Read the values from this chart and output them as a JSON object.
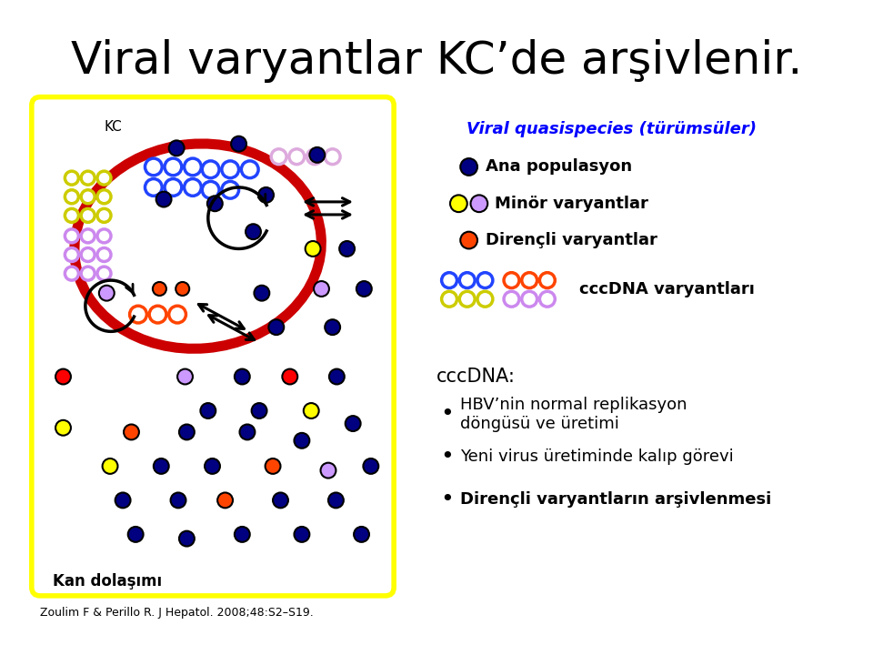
{
  "title": "Viral varyantlar KC’de arşivlenir.",
  "title_fontsize": 36,
  "title_color": "#000000",
  "background_color": "#ffffff",
  "legend_title": "Viral quasispecies (türümsüler)",
  "legend_title_color": "#0000ff",
  "legend_item0_label": "Ana populasyon",
  "legend_item1_label": "Minör varyantlar",
  "legend_item2_label": "Dirençli varyantlar",
  "legend_item3_label": "cccDNA varyantları",
  "cccdna_text": "cccDNA:",
  "bullet_points": [
    "HBV’nin normal replikasyon\ndöngüsü ve üretimi",
    "Yeni virus üretiminde kalıp görevi",
    "Dirençli varyantların arşivlenmesi"
  ],
  "bullet_bold": [
    false,
    false,
    true
  ],
  "footnote": "Zoulim F & Perillo R. J Hepatol. 2008;48:S2–S19.",
  "cell_box_color": "#ffff00",
  "nucleus_color": "#cc0000",
  "kc_label": "KC",
  "kan_label": "Kan dolaşımı",
  "blue_dark": "#000080",
  "blue_ring": "#2244ff",
  "yellow": "#ffff00",
  "yellow_ring": "#cccc00",
  "purple": "#cc99ff",
  "purple_ring": "#cc88ee",
  "orange_red": "#ff4400",
  "pink_ring": "#ddaadd"
}
